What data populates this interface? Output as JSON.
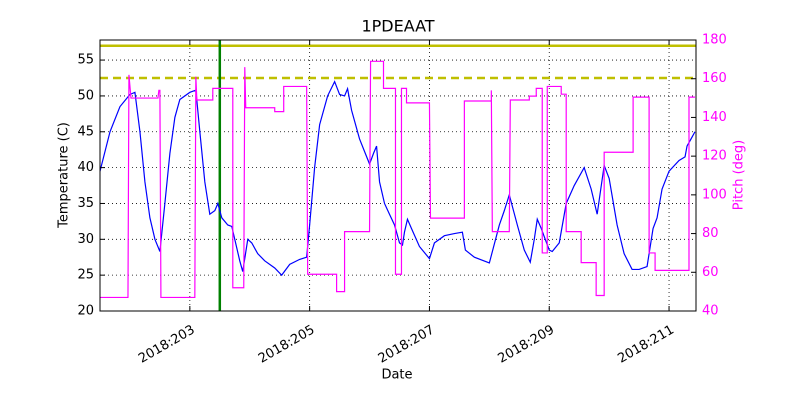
{
  "chart_data": {
    "type": "line",
    "title": "1PDEAAT",
    "xlabel": "Date",
    "ylabel": "Temperature (C)",
    "y2label": "Pitch (deg)",
    "xlim": [
      201.5,
      211.45
    ],
    "xticks": [
      {
        "value": 203,
        "label": "2018:203"
      },
      {
        "value": 205,
        "label": "2018:205"
      },
      {
        "value": 207,
        "label": "2018:207"
      },
      {
        "value": 209,
        "label": "2018:209"
      },
      {
        "value": 211,
        "label": "2018:211"
      }
    ],
    "ylim": [
      20,
      57.8
    ],
    "yticks": [
      20,
      25,
      30,
      35,
      40,
      45,
      50,
      55
    ],
    "y2lim": [
      40,
      180
    ],
    "y2ticks": [
      40,
      60,
      80,
      100,
      120,
      140,
      160,
      180
    ],
    "y2color": "#ff00ff",
    "grid": true,
    "hlines": [
      {
        "value": 57,
        "color": "#bfbf00",
        "style": "solid"
      },
      {
        "value": 52.5,
        "color": "#bfbf00",
        "style": "dashed"
      }
    ],
    "vlines": [
      {
        "value": 203.5,
        "color": "#008000",
        "style": "solid"
      }
    ],
    "series": [
      {
        "color": "#0000ff",
        "axis": "y",
        "x": [
          201.5,
          201.667,
          201.833,
          202.0,
          202.083,
          202.167,
          202.25,
          202.333,
          202.417,
          202.5,
          202.583,
          202.667,
          202.75,
          202.833,
          203.0,
          203.1,
          203.167,
          203.25,
          203.333,
          203.417,
          203.467,
          203.533,
          203.633,
          203.7,
          203.833,
          203.883,
          203.967,
          204.033,
          204.133,
          204.25,
          204.417,
          204.533,
          204.667,
          204.833,
          204.95,
          205.0,
          205.083,
          205.167,
          205.3,
          205.417,
          205.5,
          205.583,
          205.633,
          205.7,
          205.833,
          206.0,
          206.067,
          206.117,
          206.167,
          206.25,
          206.333,
          206.417,
          206.5,
          206.55,
          206.583,
          206.633,
          206.7,
          206.833,
          207.0,
          207.083,
          207.25,
          207.417,
          207.55,
          207.6,
          207.75,
          208.0,
          208.167,
          208.25,
          208.333,
          208.467,
          208.583,
          208.683,
          208.75,
          208.8,
          208.867,
          208.933,
          209.0,
          209.05,
          209.167,
          209.283,
          209.417,
          209.583,
          209.7,
          209.8,
          209.917,
          210.0,
          210.133,
          210.25,
          210.383,
          210.5,
          210.633,
          210.733,
          210.8,
          210.883,
          211.0,
          211.167,
          211.267,
          211.3,
          211.367,
          211.433
        ],
        "values": [
          39.5,
          45,
          48.5,
          50.2,
          50.5,
          45,
          38,
          33,
          30,
          28.3,
          35,
          42,
          47,
          49.5,
          50.5,
          50.8,
          45,
          38,
          33.5,
          34,
          35,
          33,
          32,
          31.8,
          27,
          25.5,
          30,
          29.5,
          28,
          27,
          26,
          25,
          26.5,
          27.2,
          27.5,
          32,
          40,
          46,
          50,
          52,
          50.2,
          50,
          51,
          48,
          44,
          40.5,
          42,
          43,
          38,
          35,
          33.5,
          32,
          29.5,
          29.2,
          31,
          32.8,
          31.5,
          29,
          27.3,
          29.5,
          30.5,
          30.8,
          31,
          28.5,
          27.5,
          26.7,
          32,
          34,
          36.2,
          32,
          28.5,
          26.8,
          30,
          32.8,
          31.5,
          30,
          28.5,
          28.3,
          29.5,
          35,
          37.5,
          40,
          37,
          33.5,
          40.3,
          38.5,
          32,
          28,
          25.8,
          25.8,
          26.2,
          31.5,
          33,
          37,
          39.5,
          41,
          41.5,
          43,
          44,
          45
        ]
      },
      {
        "color": "#ff00ff",
        "axis": "y2",
        "x": [
          201.5,
          201.967,
          201.983,
          202.017,
          202.467,
          202.483,
          202.5,
          202.517,
          203.083,
          203.1,
          203.117,
          203.383,
          203.383,
          203.717,
          203.717,
          203.9,
          203.917,
          203.933,
          204.417,
          204.417,
          204.567,
          204.567,
          204.95,
          204.967,
          205.45,
          205.45,
          205.583,
          205.583,
          206.0,
          206.017,
          206.233,
          206.233,
          206.433,
          206.433,
          206.533,
          206.533,
          206.617,
          206.617,
          207.0,
          207.017,
          207.583,
          207.583,
          208.033,
          208.033,
          208.05,
          208.333,
          208.35,
          208.667,
          208.667,
          208.783,
          208.783,
          208.883,
          208.883,
          208.967,
          208.967,
          209.2,
          209.2,
          209.283,
          209.283,
          209.533,
          209.533,
          209.783,
          209.783,
          209.917,
          209.917,
          210.4,
          210.4,
          210.667,
          210.667,
          210.767,
          210.767,
          211.333,
          211.333,
          211.433
        ],
        "values": [
          47,
          47,
          162,
          150,
          150,
          154,
          154,
          47,
          47,
          161,
          149,
          149,
          155,
          155,
          52,
          52,
          166,
          145,
          145,
          143,
          143,
          156,
          156,
          59,
          59,
          50,
          50,
          81,
          81,
          169,
          169,
          155,
          155,
          59,
          59,
          155,
          155,
          147.5,
          147.5,
          88,
          88,
          148.5,
          148.5,
          154,
          81,
          81,
          149,
          149,
          151,
          151,
          155,
          155,
          70,
          70,
          156,
          156,
          152,
          152,
          81,
          81,
          65,
          65,
          48,
          48,
          122,
          122,
          150.5,
          150.5,
          70,
          70,
          61,
          61,
          150.5,
          150.5
        ]
      }
    ]
  }
}
